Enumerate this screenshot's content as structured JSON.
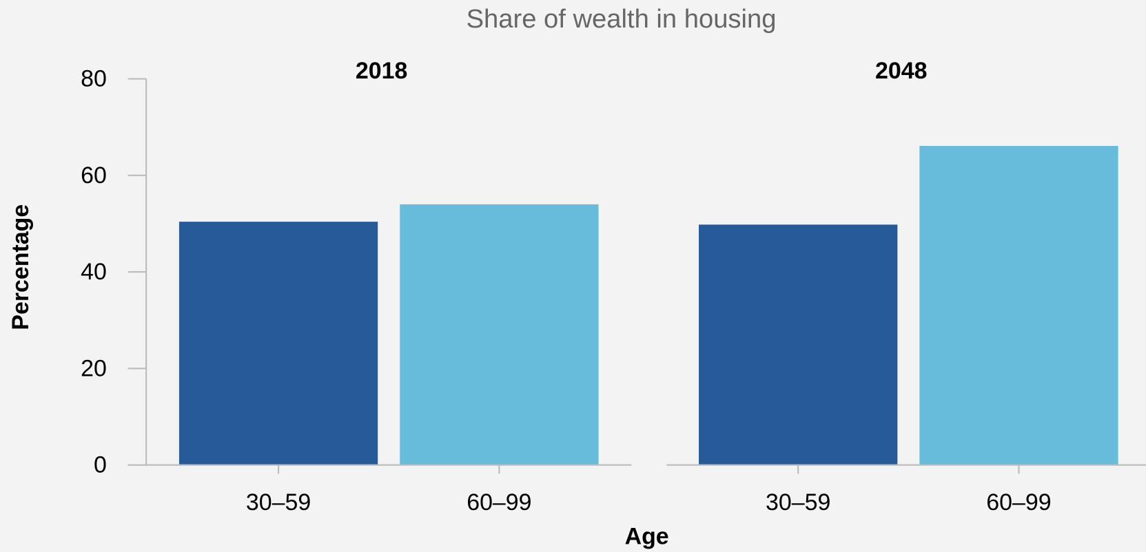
{
  "page": {
    "title": "Share of wealth in housing",
    "xlabel": "Age",
    "ylabel": "Percentage"
  },
  "chart_data": [
    {
      "type": "bar",
      "title": "2018",
      "categories": [
        "30–59",
        "60–99"
      ],
      "values": [
        50.4,
        54.0
      ],
      "colors": [
        "#265a99",
        "#67bbdb"
      ],
      "ylim": [
        0,
        80
      ],
      "yticks": [
        0,
        20,
        40,
        60,
        80
      ]
    },
    {
      "type": "bar",
      "title": "2048",
      "categories": [
        "30–59",
        "60–99"
      ],
      "values": [
        49.8,
        66.1
      ],
      "colors": [
        "#265a99",
        "#67bbdb"
      ],
      "ylim": [
        0,
        80
      ]
    }
  ]
}
